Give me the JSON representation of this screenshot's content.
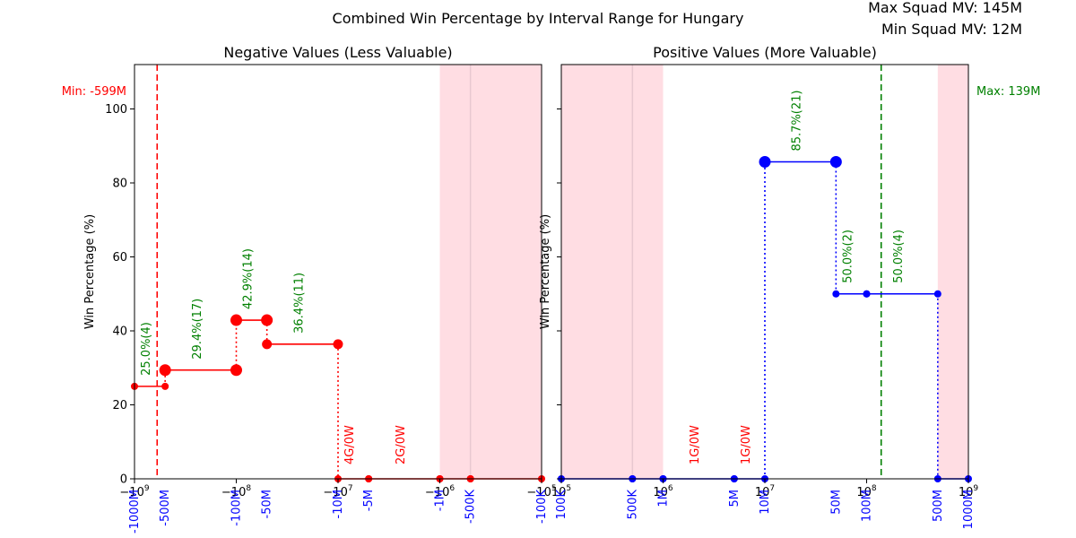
{
  "figure": {
    "title": "Combined Win Percentage by Interval Range for Hungary",
    "max_squad_text": "Max Squad MV: 145M",
    "min_squad_text": "Min Squad MV: 12M"
  },
  "chart_data": [
    {
      "type": "line",
      "title": "Negative Values (Less Valuable)",
      "ylabel": "Win Percentage (%)",
      "xscale": "symlog-negative",
      "xlim": [
        -1000000000,
        -100000
      ],
      "ylim": [
        0,
        112
      ],
      "yticks": [
        0,
        20,
        40,
        60,
        80,
        100
      ],
      "xticks_top": [
        {
          "v": -1000000000,
          "label": "−10^9"
        },
        {
          "v": -100000000,
          "label": "−10^8"
        },
        {
          "v": -10000000,
          "label": "−10^7"
        },
        {
          "v": -1000000,
          "label": "−10^6"
        },
        {
          "v": -100000,
          "label": "−10^5"
        }
      ],
      "xticks_bottom": [
        {
          "v": -1000000000,
          "label": "-1000M"
        },
        {
          "v": -500000000,
          "label": "-500M"
        },
        {
          "v": -100000000,
          "label": "-100M"
        },
        {
          "v": -50000000,
          "label": "-50M"
        },
        {
          "v": -10000000,
          "label": "-10M"
        },
        {
          "v": -5000000,
          "label": "-5M"
        },
        {
          "v": -1000000,
          "label": "-1M"
        },
        {
          "v": -500000,
          "label": "-500K"
        },
        {
          "v": -100000,
          "label": "-100K"
        }
      ],
      "shaded_range": [
        -1000000,
        -100000
      ],
      "ref_line": {
        "x": -599000000,
        "label": "Min: -599M",
        "color": "#ff0000"
      },
      "color": "#ff0000",
      "segments": [
        {
          "x0": -1000000000,
          "x1": -500000000,
          "y": 25.0,
          "n": 4,
          "label": "25.0%(4)"
        },
        {
          "x0": -500000000,
          "x1": -100000000,
          "y": 29.4,
          "n": 17,
          "label": "29.4%(17)"
        },
        {
          "x0": -100000000,
          "x1": -50000000,
          "y": 42.9,
          "n": 14,
          "label": "42.9%(14)"
        },
        {
          "x0": -50000000,
          "x1": -10000000,
          "y": 36.4,
          "n": 11,
          "label": "36.4%(11)"
        },
        {
          "x0": -10000000,
          "x1": -5000000,
          "y": 0,
          "n": 0,
          "label": "4G/0W",
          "zero": true
        },
        {
          "x0": -5000000,
          "x1": -1000000,
          "y": 0,
          "n": 0,
          "label": "2G/0W",
          "zero": true
        },
        {
          "x0": -1000000,
          "x1": -500000,
          "y": 0,
          "n": 0,
          "label": "",
          "zero": true
        },
        {
          "x0": -500000,
          "x1": -100000,
          "y": 0,
          "n": 0,
          "label": "",
          "zero": true
        }
      ]
    },
    {
      "type": "line",
      "title": "Positive Values (More Valuable)",
      "ylabel": "Win Percentage (%)",
      "xscale": "log",
      "xlim": [
        100000,
        1000000000
      ],
      "ylim": [
        0,
        112
      ],
      "yticks": [
        0,
        20,
        40,
        60,
        80,
        100
      ],
      "xticks_top": [
        {
          "v": 100000,
          "label": "10^5"
        },
        {
          "v": 1000000,
          "label": "10^6"
        },
        {
          "v": 10000000,
          "label": "10^7"
        },
        {
          "v": 100000000,
          "label": "10^8"
        },
        {
          "v": 1000000000,
          "label": "10^9"
        }
      ],
      "xticks_bottom": [
        {
          "v": 100000,
          "label": "100K"
        },
        {
          "v": 500000,
          "label": "500K"
        },
        {
          "v": 1000000,
          "label": "1M"
        },
        {
          "v": 5000000,
          "label": "5M"
        },
        {
          "v": 10000000,
          "label": "10M"
        },
        {
          "v": 50000000,
          "label": "50M"
        },
        {
          "v": 100000000,
          "label": "100M"
        },
        {
          "v": 500000000,
          "label": "500M"
        },
        {
          "v": 1000000000,
          "label": "1000M"
        }
      ],
      "shaded_range": [
        100000,
        1000000
      ],
      "shaded_range_2": [
        500000000,
        1000000000
      ],
      "ref_line": {
        "x": 139000000,
        "label": "Max: 139M",
        "color": "#008000"
      },
      "color": "#0000ff",
      "segments": [
        {
          "x0": 100000,
          "x1": 500000,
          "y": 0,
          "n": 0,
          "label": "",
          "zero": true
        },
        {
          "x0": 500000,
          "x1": 1000000,
          "y": 0,
          "n": 0,
          "label": "",
          "zero": true
        },
        {
          "x0": 1000000,
          "x1": 5000000,
          "y": 0,
          "n": 0,
          "label": "1G/0W",
          "zero": true
        },
        {
          "x0": 5000000,
          "x1": 10000000,
          "y": 0,
          "n": 0,
          "label": "1G/0W",
          "zero": true
        },
        {
          "x0": 10000000,
          "x1": 50000000,
          "y": 85.7,
          "n": 21,
          "label": "85.7%(21)"
        },
        {
          "x0": 50000000,
          "x1": 100000000,
          "y": 50.0,
          "n": 2,
          "label": "50.0%(2)"
        },
        {
          "x0": 100000000,
          "x1": 500000000,
          "y": 50.0,
          "n": 4,
          "label": "50.0%(4)"
        },
        {
          "x0": 500000000,
          "x1": 1000000000,
          "y": 0,
          "n": 0,
          "label": "",
          "zero": true
        }
      ]
    }
  ]
}
